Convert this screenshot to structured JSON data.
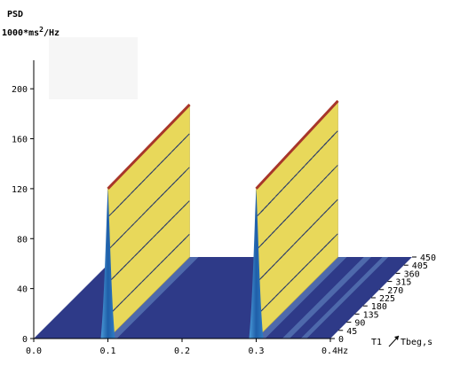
{
  "chart_data": {
    "type": "area",
    "title_line1": "PSD",
    "units_prefix": "1000*ms",
    "units_exp": "2",
    "units_suffix": "/Hz",
    "x_axis": {
      "ticks": [
        0.0,
        0.1,
        0.2,
        0.3,
        0.4
      ],
      "tick_labels": [
        "0.0",
        "0.1",
        "0.2",
        "0.3",
        "0.4Hz"
      ],
      "range": [
        0,
        0.4
      ]
    },
    "y_axis": {
      "ticks": [
        0,
        40,
        80,
        120,
        160,
        200
      ],
      "tick_labels": [
        "0",
        "40",
        "80",
        "120",
        "160",
        "200"
      ],
      "range": [
        0,
        220
      ]
    },
    "depth_axis": {
      "label_left": "T1",
      "label_right": "Tbeg,s",
      "ticks": [
        0,
        45,
        90,
        135,
        180,
        225,
        270,
        315,
        360,
        405,
        450
      ],
      "tick_labels": [
        "0",
        "45",
        "90",
        "135",
        "180",
        "225",
        "270",
        "315",
        "360",
        "405",
        "450"
      ],
      "range": [
        0,
        450
      ]
    },
    "peaks": [
      {
        "frequency": 0.1,
        "psd_front": 120,
        "psd_back": 122
      },
      {
        "frequency": 0.3,
        "psd_front": 120,
        "psd_back": 125
      }
    ],
    "colors": {
      "floor": "#2e3a88",
      "wall": "#e8d85a",
      "peak_front": "#2a6bb0",
      "ridge": "#a8362a",
      "grid_lines": "#6a8fc8"
    }
  }
}
